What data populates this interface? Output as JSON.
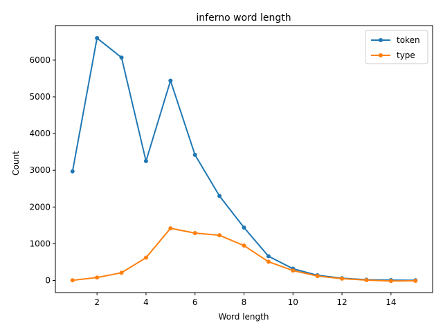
{
  "chart_data": {
    "type": "line",
    "title": "inferno word length",
    "xlabel": "Word length",
    "ylabel": "Count",
    "x": [
      1,
      2,
      3,
      4,
      5,
      6,
      7,
      8,
      9,
      10,
      11,
      12,
      13,
      14,
      15
    ],
    "series": [
      {
        "name": "token",
        "color": "#1f77b4",
        "values": [
          2970,
          6600,
          6070,
          3250,
          5440,
          3420,
          2300,
          1440,
          660,
          320,
          140,
          60,
          20,
          10,
          5
        ]
      },
      {
        "name": "type",
        "color": "#ff7f0e",
        "values": [
          5,
          80,
          210,
          620,
          1420,
          1290,
          1230,
          950,
          510,
          270,
          120,
          50,
          10,
          -15,
          -10
        ]
      }
    ],
    "xlim": [
      0.3,
      15.7
    ],
    "ylim": [
      -330,
      6940
    ],
    "xticks": [
      2,
      4,
      6,
      8,
      10,
      12,
      14
    ],
    "yticks": [
      0,
      1000,
      2000,
      3000,
      4000,
      5000,
      6000
    ],
    "grid": false,
    "legend_position": "top-right"
  }
}
